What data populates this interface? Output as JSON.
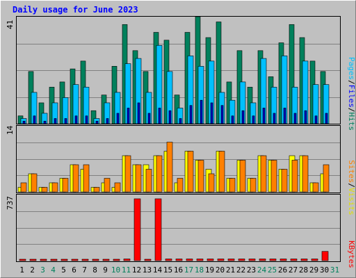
{
  "title": "Daily usage for June 2023",
  "colors": {
    "hits": "#00805c",
    "files": "#00c0ff",
    "sites": "#ff8000",
    "visits": "#ffff00",
    "kbytes": "#ff0000",
    "weekday_label": "#000000",
    "weekend_label": "#00805c",
    "plot_bg": "#c0c0c0",
    "gridline": "#808080"
  },
  "panels": {
    "top": {
      "ymax_label": "41",
      "legend": {
        "pages": "Pages",
        "files": "Files",
        "hits": "Hits",
        "sep": "/"
      }
    },
    "middle": {
      "ymax_label": "14",
      "legend": {
        "sites": "Sites",
        "visits": "Visits",
        "sep": "/"
      }
    },
    "bottom": {
      "ymax_label": "737",
      "legend": {
        "kbytes": "KBytes"
      }
    }
  },
  "chart_data": {
    "type": "bar",
    "title": "Daily usage for June 2023",
    "categories": [
      "1",
      "2",
      "3",
      "4",
      "5",
      "6",
      "7",
      "8",
      "9",
      "10",
      "11",
      "12",
      "13",
      "14",
      "15",
      "16",
      "17",
      "18",
      "19",
      "20",
      "21",
      "22",
      "23",
      "24",
      "25",
      "26",
      "27",
      "28",
      "29",
      "30",
      "31"
    ],
    "weekend_days": [
      "3",
      "4",
      "10",
      "11",
      "17",
      "18",
      "24",
      "25",
      "31"
    ],
    "panels": [
      {
        "name": "hits-files-pages",
        "ylim": [
          0,
          41
        ],
        "series": [
          {
            "name": "Hits",
            "color": "#00805c",
            "values": [
              3,
              20,
              8,
              14,
              16,
              21,
              24,
              5,
              11,
              22,
              38,
              28,
              20,
              35,
              32,
              11,
              35,
              41,
              33,
              39,
              16,
              28,
              14,
              28,
              18,
              31,
              38,
              33,
              24,
              20,
              0
            ]
          },
          {
            "name": "Files",
            "color": "#00c0ff",
            "values": [
              2,
              12,
              4,
              8,
              10,
              15,
              14,
              2,
              8,
              12,
              23,
              25,
              12,
              30,
              20,
              6,
              26,
              22,
              24,
              12,
              9,
              16,
              8,
              25,
              14,
              26,
              14,
              24,
              15,
              15,
              0
            ]
          },
          {
            "name": "Pages",
            "color": "#0000c0",
            "values": [
              1,
              3,
              1,
              2,
              2,
              3,
              3,
              1,
              2,
              4,
              6,
              8,
              4,
              6,
              5,
              2,
              7,
              9,
              8,
              7,
              3,
              5,
              3,
              6,
              4,
              6,
              4,
              5,
              3,
              4,
              0
            ]
          }
        ]
      },
      {
        "name": "sites-visits",
        "ylim": [
          0,
          14
        ],
        "series": [
          {
            "name": "Visits",
            "color": "#ffff00",
            "values": [
              1,
              4,
              1,
              2,
              3,
              6,
              5,
              1,
              2,
              1,
              8,
              6,
              6,
              8,
              9,
              2,
              9,
              7,
              5,
              9,
              3,
              7,
              3,
              8,
              7,
              5,
              8,
              8,
              2,
              4,
              0
            ]
          },
          {
            "name": "Sites",
            "color": "#ff8000",
            "values": [
              2,
              4,
              1,
              2,
              3,
              6,
              6,
              1,
              3,
              2,
              8,
              6,
              5,
              8,
              11,
              3,
              9,
              7,
              4,
              9,
              3,
              7,
              3,
              8,
              7,
              5,
              7,
              8,
              2,
              6,
              0
            ]
          }
        ]
      },
      {
        "name": "kbytes",
        "ylim": [
          0,
          737
        ],
        "series": [
          {
            "name": "KBytes",
            "color": "#ff0000",
            "values": [
              4,
              4,
              4,
              4,
              4,
              4,
              4,
              4,
              4,
              4,
              20,
              737,
              4,
              737,
              20,
              20,
              20,
              20,
              20,
              20,
              20,
              20,
              20,
              20,
              20,
              20,
              20,
              20,
              20,
              110,
              0
            ]
          }
        ]
      }
    ],
    "legend_placement": "right-vertical",
    "grid": true
  }
}
